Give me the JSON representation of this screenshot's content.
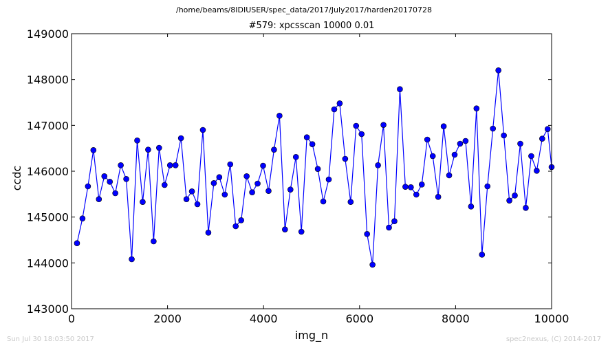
{
  "header": {
    "path": "/home/beams/8IDIUSER/spec_data/2017/July2017/harden20170728"
  },
  "footer": {
    "timestamp": "Sun Jul 30 18:03:50 2017",
    "credit": "spec2nexus, (C) 2014-2017"
  },
  "chart_data": {
    "type": "line",
    "title": "#579: xpcsscan 10000 0.01",
    "xlabel": "img_n",
    "ylabel": "ccdc",
    "xlim": [
      0,
      10000
    ],
    "ylim": [
      143000,
      149000
    ],
    "xticks": [
      0,
      2000,
      4000,
      6000,
      8000,
      10000
    ],
    "yticks": [
      143000,
      144000,
      145000,
      146000,
      147000,
      148000,
      149000
    ],
    "grid": false,
    "colors": {
      "series": "#0000ff",
      "marker_edge": "#000000"
    },
    "series": [
      {
        "marker": "circle",
        "x": [
          114,
          228,
          342,
          456,
          570,
          684,
          798,
          912,
          1026,
          1140,
          1254,
          1368,
          1482,
          1596,
          1710,
          1824,
          1938,
          2052,
          2166,
          2280,
          2394,
          2508,
          2622,
          2736,
          2850,
          2964,
          3078,
          3192,
          3306,
          3420,
          3534,
          3648,
          3762,
          3876,
          3990,
          4104,
          4218,
          4332,
          4446,
          4560,
          4674,
          4788,
          4902,
          5016,
          5130,
          5244,
          5358,
          5472,
          5586,
          5700,
          5814,
          5928,
          6042,
          6156,
          6270,
          6384,
          6498,
          6612,
          6726,
          6840,
          6954,
          7068,
          7182,
          7296,
          7410,
          7524,
          7638,
          7752,
          7866,
          7980,
          8094,
          8208,
          8322,
          8436,
          8550,
          8664,
          8778,
          8892,
          9006,
          9120,
          9234,
          9348,
          9462,
          9576,
          9690,
          9804,
          9918,
          10000
        ],
        "y": [
          144430,
          144970,
          145670,
          146460,
          145390,
          145890,
          145770,
          145520,
          146130,
          145830,
          144080,
          146670,
          145330,
          146470,
          144470,
          146510,
          145700,
          146130,
          146130,
          146720,
          145390,
          145560,
          145280,
          146900,
          144660,
          145740,
          145870,
          145490,
          146150,
          144800,
          144930,
          145890,
          145540,
          145730,
          146120,
          145570,
          146470,
          147210,
          144730,
          145600,
          146310,
          144680,
          146740,
          146590,
          146050,
          145340,
          145820,
          147350,
          147480,
          146270,
          145330,
          146990,
          146810,
          144630,
          143960,
          146130,
          147010,
          144770,
          144910,
          147790,
          145660,
          145650,
          145490,
          145710,
          146690,
          146330,
          145440,
          146980,
          145910,
          146360,
          146600,
          146660,
          145230,
          147370,
          144180,
          145670,
          146930,
          148200,
          146780,
          145360,
          145470,
          146600,
          145200,
          146330,
          146010,
          146710,
          146920,
          146090
        ]
      }
    ]
  }
}
